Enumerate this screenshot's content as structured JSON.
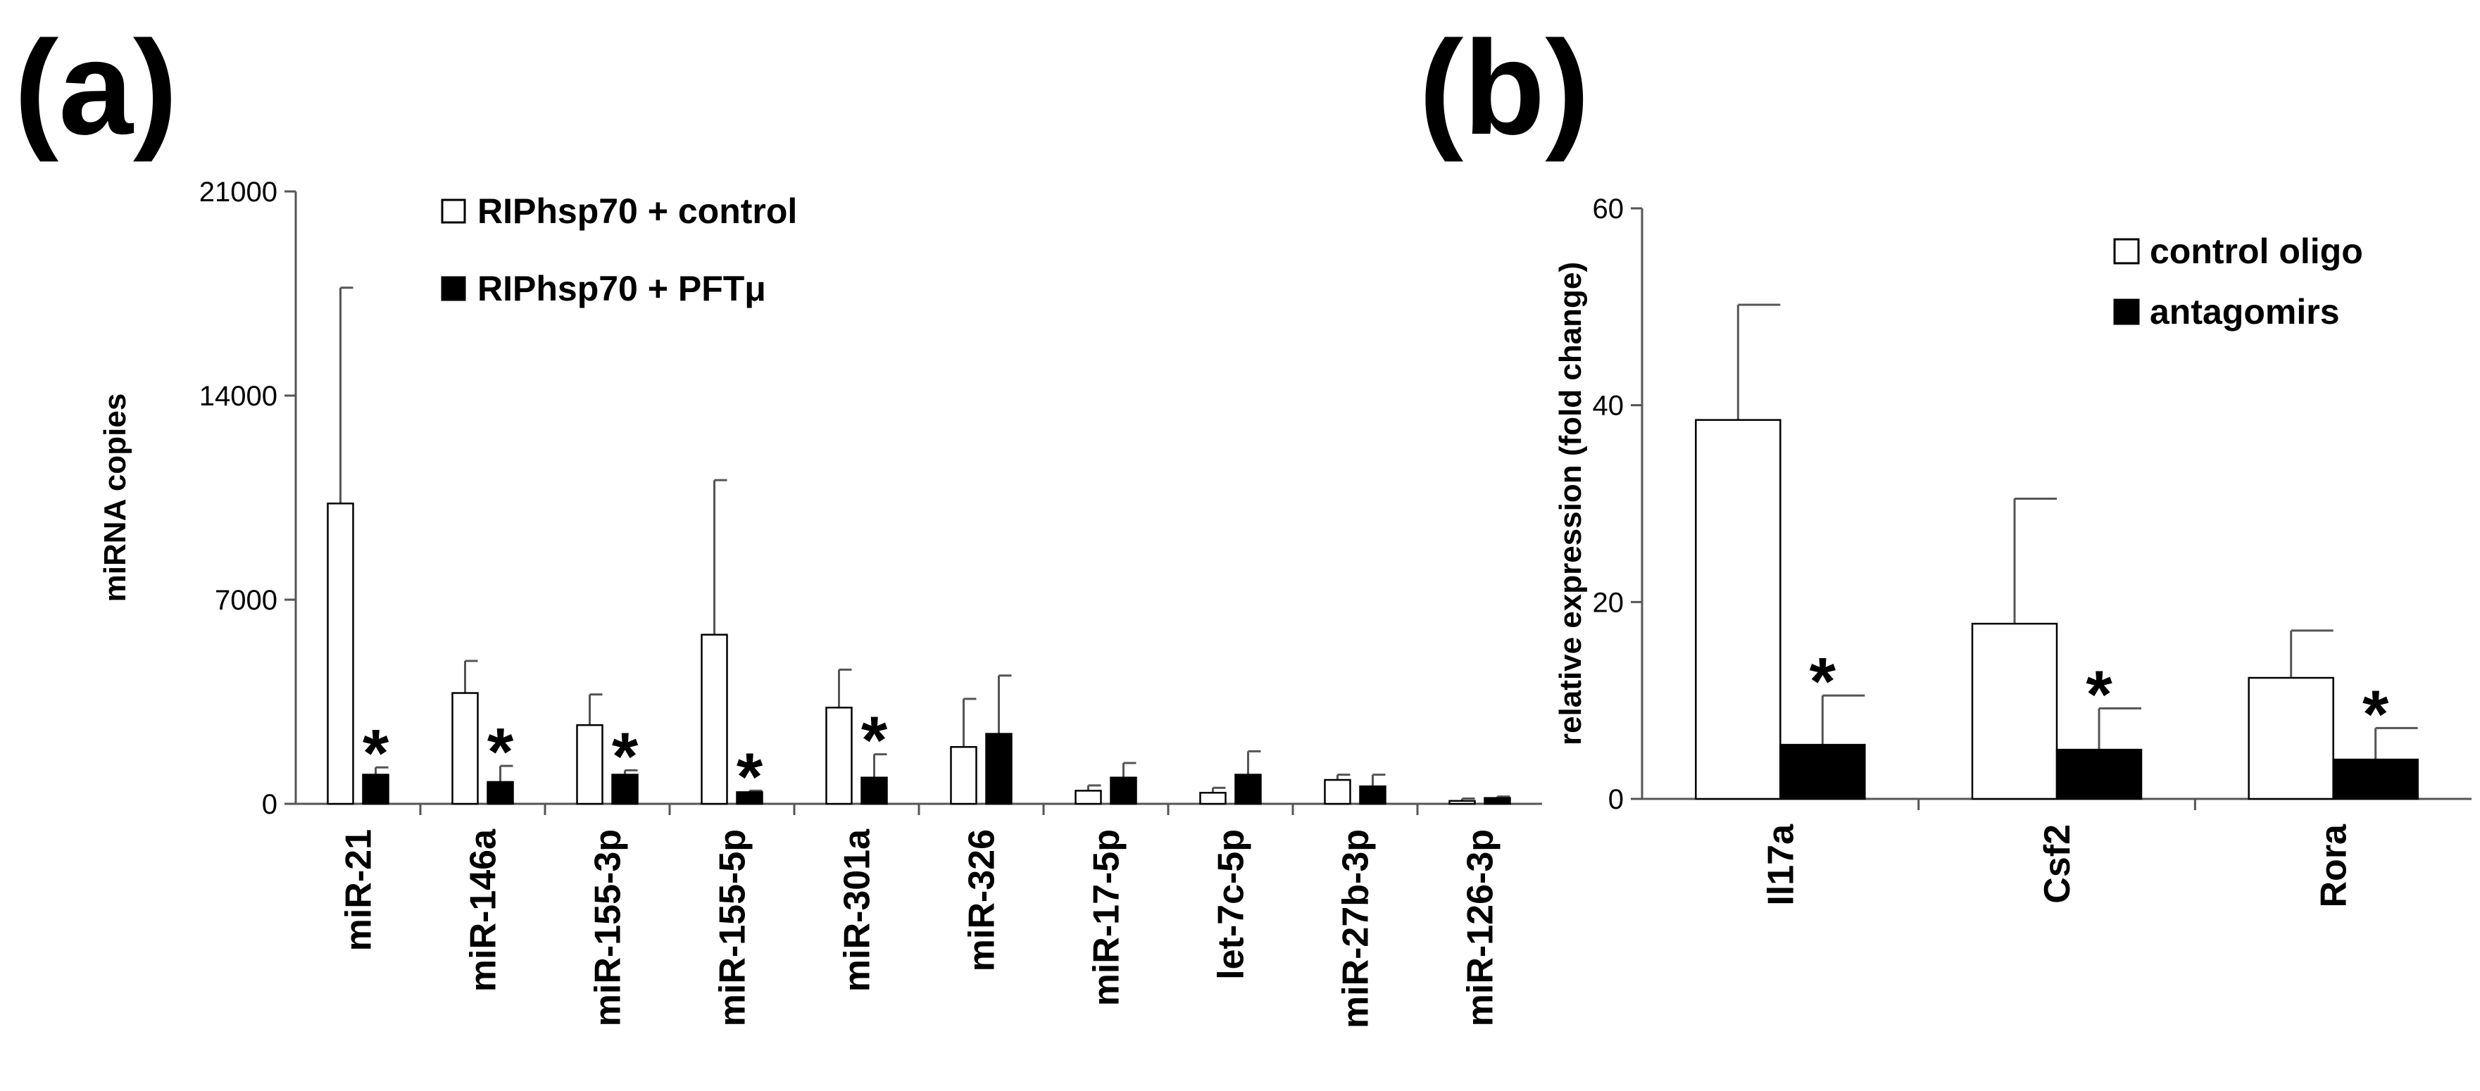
{
  "chart_data": [
    {
      "id": "a",
      "panel_label": "(a)",
      "type": "bar",
      "title": "",
      "xlabel": "",
      "ylabel": "miRNA copies",
      "ylim": [
        0,
        21000
      ],
      "yticks": [
        0,
        7000,
        14000,
        21000
      ],
      "yticklabels": [
        "0",
        "7000",
        "14000",
        "21000"
      ],
      "grid": false,
      "legend_position": "top-center",
      "categories": [
        "miR-21",
        "miR-146a",
        "miR-155-3p",
        "miR-155-5p",
        "miR-301a",
        "miR-326",
        "miR-17-5p",
        "let-7c-5p",
        "miR-27b-3p",
        "miR-126-3p"
      ],
      "series": [
        {
          "name": "RIPhsp70 + control",
          "fill": "#ffffff",
          "values": [
            10300,
            3800,
            2700,
            5800,
            3300,
            1950,
            450,
            380,
            820,
            100
          ],
          "errors": [
            7400,
            1100,
            1050,
            5300,
            1300,
            1650,
            180,
            170,
            180,
            80
          ]
        },
        {
          "name": "RIPhsp70 + PFTμ",
          "fill": "#000000",
          "values": [
            1000,
            750,
            1000,
            400,
            900,
            2400,
            900,
            1000,
            600,
            200
          ],
          "errors": [
            250,
            550,
            150,
            50,
            800,
            2000,
            500,
            800,
            400,
            50
          ]
        }
      ],
      "significance_marker": "*",
      "significant_categories": [
        "miR-21",
        "miR-146a",
        "miR-155-3p",
        "miR-155-5p",
        "miR-301a"
      ]
    },
    {
      "id": "b",
      "panel_label": "(b)",
      "type": "bar",
      "title": "",
      "xlabel": "",
      "ylabel": "relative expression (fold change)",
      "ylim": [
        0,
        60
      ],
      "yticks": [
        0,
        20,
        40,
        60
      ],
      "yticklabels": [
        "0",
        "20",
        "40",
        "60"
      ],
      "grid": false,
      "legend_position": "top-right",
      "categories": [
        "Il17a",
        "Csf2",
        "Rora"
      ],
      "series": [
        {
          "name": "control oligo",
          "fill": "#ffffff",
          "values": [
            38.5,
            17.8,
            12.3
          ],
          "errors": [
            11.7,
            12.7,
            4.8
          ]
        },
        {
          "name": "antagomirs",
          "fill": "#000000",
          "values": [
            5.5,
            5.0,
            4.0
          ],
          "errors": [
            5.0,
            4.2,
            3.2
          ]
        }
      ],
      "significance_marker": "*",
      "significant_categories": [
        "Il17a",
        "Csf2",
        "Rora"
      ]
    }
  ]
}
